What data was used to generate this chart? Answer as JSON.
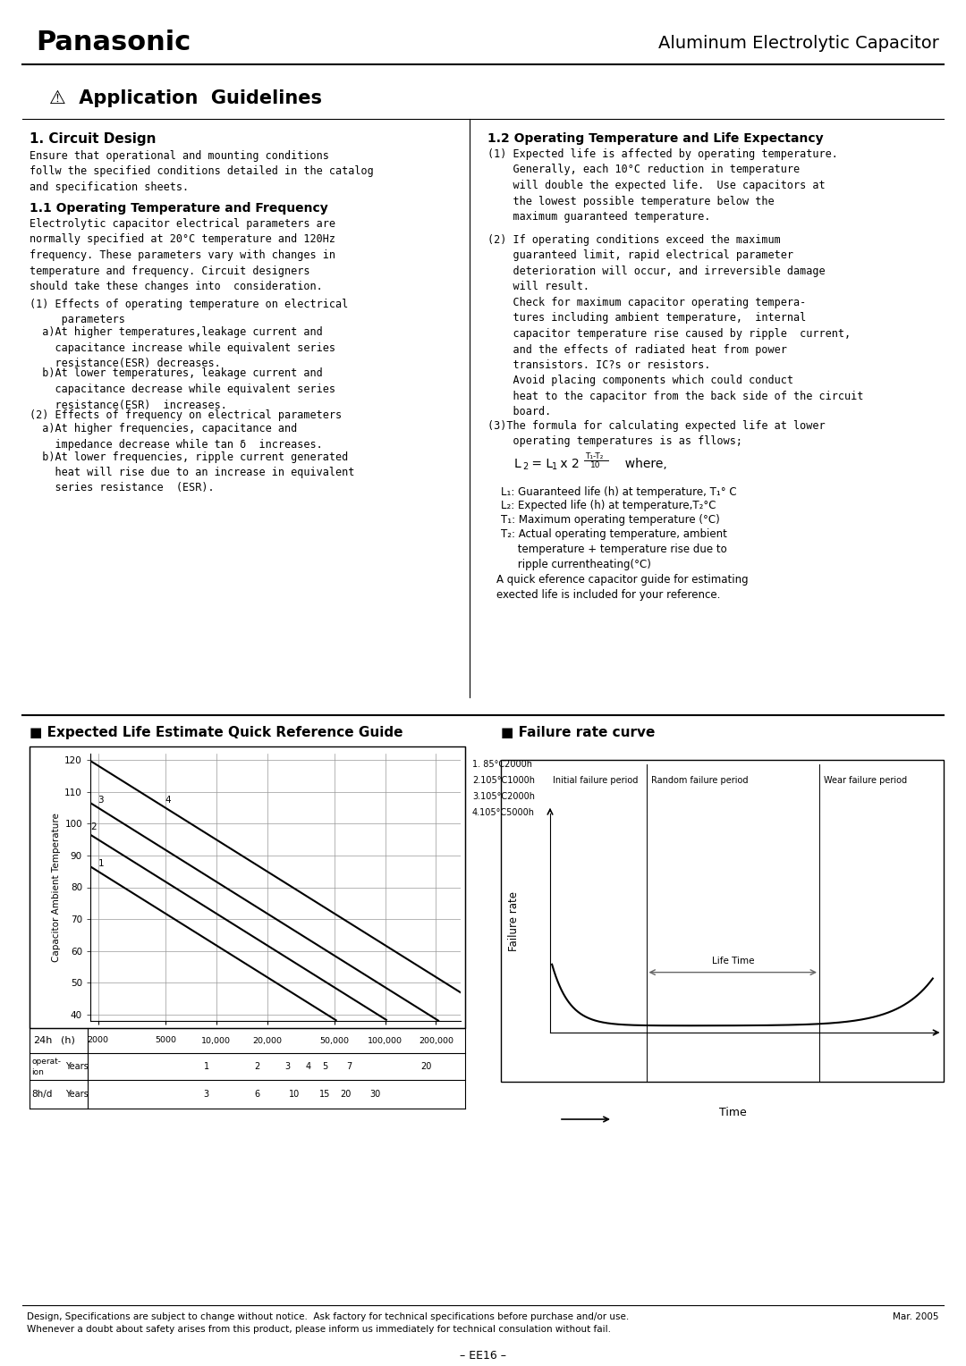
{
  "title_panasonic": "Panasonic",
  "title_right": "Aluminum Electrolytic Capacitor",
  "section1_title": "⚠  Application  Guidelines",
  "circuit_design_title": "1. Circuit Design",
  "circuit_design_text": "Ensure that operational and mounting conditions\nfollw the specified conditions detailed in the catalog\nand specification sheets.",
  "op_temp_freq_title": "1.1 Operating Temperature and Frequency",
  "op_temp_freq_text": "Electrolytic capacitor electrical parameters are\nnormally specified at 20°C temperature and 120Hz\nfrequency. These parameters vary with changes in\ntemperature and frequency. Circuit designers\nshould take these changes into  consideration.",
  "op_temp_freq_list": [
    "(1) Effects of operating temperature on electrical\n     parameters",
    "  a)At higher temperatures,leakage current and\n    capacitance increase while equivalent series\n    resistance(ESR) decreases.",
    "  b)At lower temperatures, leakage current and\n    capacitance decrease while equivalent series\n    resistance(ESR)  increases.",
    "(2) Effects of frequency on electrical parameters",
    "  a)At higher frequencies, capacitance and\n    impedance decrease while tan δ  increases.",
    "  b)At lower frequencies, ripple current generated\n    heat will rise due to an increase in equivalent\n    series resistance  (ESR)."
  ],
  "op_temp_life_title": "1.2 Operating Temperature and Life Expectancy",
  "op_temp_life_text1": "(1) Expected life is affected by operating temperature.\n    Generally, each 10°C reduction in temperature\n    will double the expected life.  Use capacitors at\n    the lowest possible temperature below the\n    maximum guaranteed temperature.",
  "op_temp_life_text2": "(2) If operating conditions exceed the maximum\n    guaranteed limit, rapid electrical parameter\n    deterioration will occur, and irreversible damage\n    will result.\n    Check for maximum capacitor operating tempera-\n    tures including ambient temperature,  internal\n    capacitor temperature rise caused by ripple  current,\n    and the effects of radiated heat from power\n    transistors. IC?s or resistors.\n    Avoid placing components which could conduct\n    heat to the capacitor from the back side of the circuit\n    board.",
  "op_temp_life_text3": "(3)The formula for calculating expected life at lower\n    operating temperatures is as fllows;",
  "formula_legend": [
    "L₁: Guaranteed life (h) at temperature, T₁° C",
    "L₂: Expected life (h) at temperature,T₂°C",
    "T₁: Maximum operating temperature (°C)",
    "T₂: Actual operating temperature, ambient\n     temperature + temperature rise due to\n     ripple currentheating(°C)"
  ],
  "formula_note": "A quick eference capacitor guide for estimating\nexected life is included for your reference.",
  "expected_life_title": "■ Expected Life Estimate Quick Reference Guide",
  "failure_rate_title": "■ Failure rate curve",
  "chart_ylabel": "Capacitor Ambient Temperature",
  "chart_yticks": [
    40,
    50,
    60,
    70,
    80,
    90,
    100,
    110,
    120
  ],
  "chart_xticks_h": [
    2000,
    5000,
    10000,
    20000,
    50000,
    100000,
    200000
  ],
  "chart_xticks_h_labels": [
    "2000",
    "5000",
    "10,000",
    "20,000",
    "50,000",
    "100,000",
    "200,000"
  ],
  "lines_legend": [
    "1. 85°C2000h",
    "2.105°C1000h",
    "3.105°C2000h",
    "4.105°C5000h"
  ],
  "footer_left": "Design, Specifications are subject to change without notice.  Ask factory for technical specifications before purchase and/or use.\nWhenever a doubt about safety arises from this product, please inform us immediately for technical consulation without fail.",
  "footer_right": "Mar. 2005",
  "footer_center": "– EE16 –",
  "bg": "#ffffff"
}
